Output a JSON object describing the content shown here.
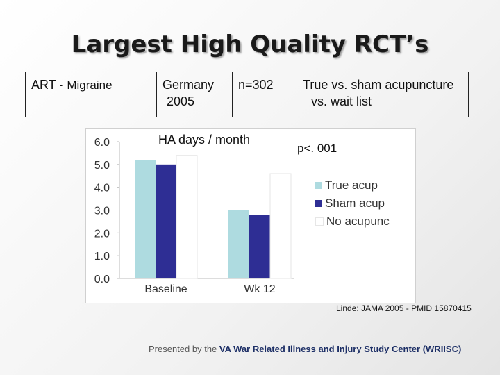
{
  "slide": {
    "title": "Largest High Quality RCT’s",
    "info": {
      "condition_a": "ART - ",
      "condition_b": "Migraine",
      "location_line1": "Germany",
      "location_line2": "2005",
      "sample": "n=302",
      "comparison_line1": "True vs. sham acupuncture",
      "comparison_line2": "vs. wait list"
    },
    "chart_label": "HA days / month",
    "p_value": "p<. 001",
    "citation": "Linde: JAMA 2005 - PMID 15870415",
    "footer_prefix": "Presented by the ",
    "footer_org": "VA War Related Illness and Injury Study Center (WRIISC)"
  },
  "chart_data": {
    "type": "bar",
    "categories": [
      "Baseline",
      "Wk 12"
    ],
    "series": [
      {
        "name": "True acup",
        "values": [
          5.2,
          3.0
        ],
        "color": "#aedbe0"
      },
      {
        "name": "Sham acup",
        "values": [
          5.0,
          2.8
        ],
        "color": "#2e2e94"
      },
      {
        "name": "No acupunc",
        "values": [
          5.4,
          4.6
        ],
        "color": "#ffffff"
      }
    ],
    "yticks": [
      "6.0",
      "5.0",
      "4.0",
      "3.0",
      "2.0",
      "1.0",
      "0.0"
    ],
    "ylim": [
      0,
      6
    ],
    "grid": false,
    "legend": "right"
  }
}
